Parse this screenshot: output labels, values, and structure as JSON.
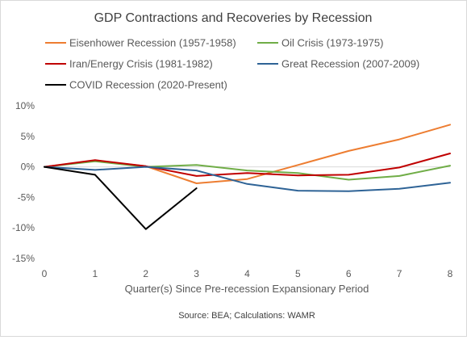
{
  "chart_data": {
    "type": "line",
    "title": "GDP Contractions and Recoveries by Recession",
    "xlabel": "Quarter(s) Since Pre-recession Expansionary Period",
    "ylabel": "",
    "source": "Source: BEA; Calculations: WAMR",
    "x_ticks": [
      0,
      1,
      2,
      3,
      4,
      5,
      6,
      7,
      8
    ],
    "y_ticks": [
      "10%",
      "5%",
      "0%",
      "-5%",
      "-10%",
      "-15%"
    ],
    "y_tick_values": [
      10,
      5,
      0,
      -5,
      -10,
      -15
    ],
    "xlim": [
      0,
      8
    ],
    "ylim": [
      -15,
      10
    ],
    "grid": false,
    "legend_position": "top",
    "series": [
      {
        "name": "Eisenhower Recession (1957-1958)",
        "color": "#ed7d31",
        "x": [
          0,
          1,
          2,
          3,
          4,
          5,
          6,
          7,
          8
        ],
        "y": [
          0,
          1.0,
          0.1,
          -2.7,
          -2.0,
          0.3,
          2.6,
          4.5,
          6.9
        ]
      },
      {
        "name": "Oil Crisis (1973-1975)",
        "color": "#70ad47",
        "x": [
          0,
          1,
          2,
          3,
          4,
          5,
          6,
          7,
          8
        ],
        "y": [
          0,
          0.9,
          0.0,
          0.3,
          -0.6,
          -1.0,
          -2.1,
          -1.5,
          0.2
        ]
      },
      {
        "name": "Iran/Energy Crisis (1981-1982)",
        "color": "#c00000",
        "x": [
          0,
          1,
          2,
          3,
          4,
          5,
          6,
          7,
          8
        ],
        "y": [
          0,
          1.1,
          0.1,
          -1.5,
          -1.0,
          -1.4,
          -1.3,
          -0.1,
          2.2
        ]
      },
      {
        "name": "Great Recession (2007-2009)",
        "color": "#2e6396",
        "x": [
          0,
          1,
          2,
          3,
          4,
          5,
          6,
          7,
          8
        ],
        "y": [
          0,
          -0.5,
          0.0,
          -0.6,
          -2.8,
          -3.9,
          -4.0,
          -3.6,
          -2.6
        ]
      },
      {
        "name": "COVID Recession (2020-Present)",
        "color": "#000000",
        "x": [
          0,
          1,
          2,
          3
        ],
        "y": [
          0,
          -1.3,
          -10.2,
          -3.5
        ]
      }
    ]
  }
}
